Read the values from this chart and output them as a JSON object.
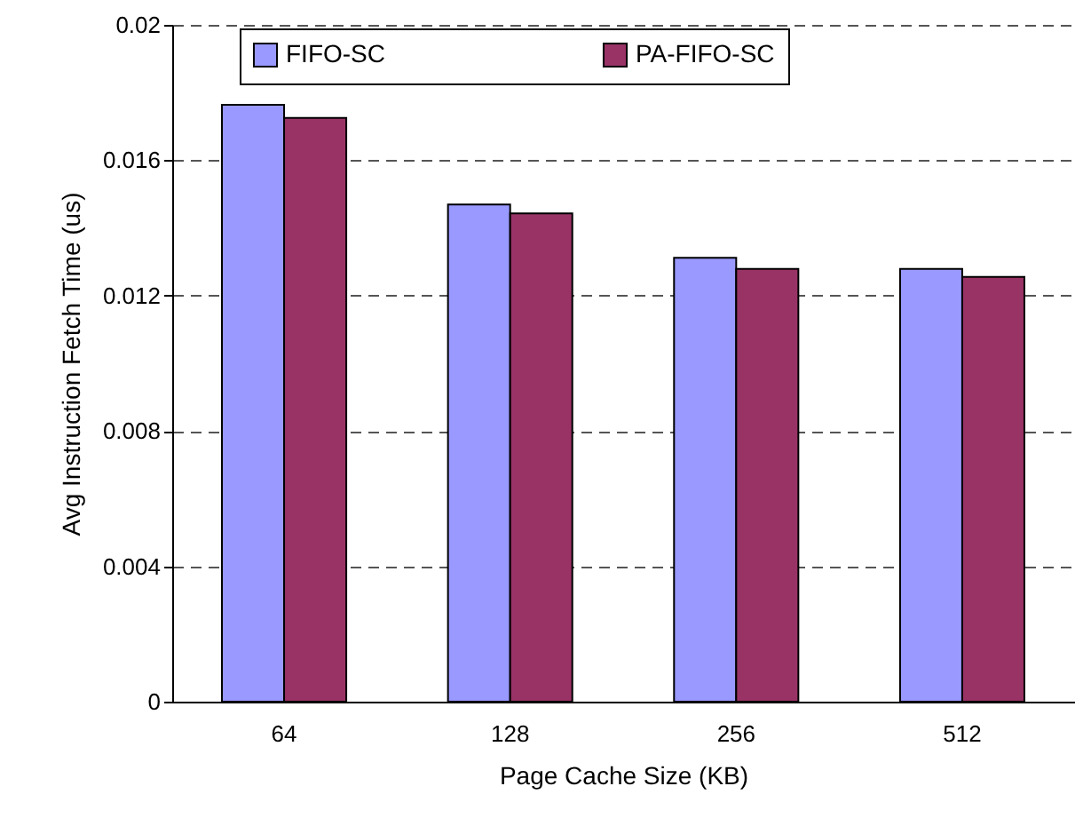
{
  "chart_data": {
    "type": "bar",
    "xlabel": "Page Cache Size (KB)",
    "ylabel": "Avg Instruction Fetch Time (us)",
    "categories": [
      "64",
      "128",
      "256",
      "512"
    ],
    "series": [
      {
        "name": "FIFO-SC",
        "color": "#9999ff",
        "values": [
          0.01764,
          0.01469,
          0.01312,
          0.01279
        ]
      },
      {
        "name": "PA-FIFO-SC",
        "color": "#993366",
        "values": [
          0.01725,
          0.01443,
          0.01279,
          0.01255
        ]
      }
    ],
    "ylim": [
      0,
      0.02
    ],
    "yticks": [
      0,
      0.004,
      0.008,
      0.012,
      0.016,
      0.02
    ],
    "grid": "y",
    "legend": "top"
  }
}
